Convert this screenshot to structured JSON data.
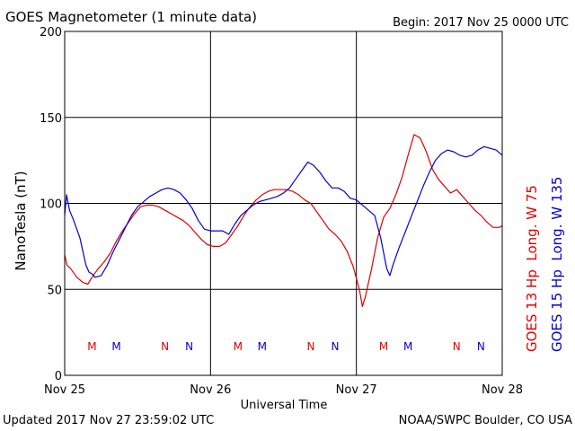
{
  "header": {
    "title": "GOES Magnetometer (1 minute data)",
    "begin": "Begin:  2017 Nov 25 0000 UTC"
  },
  "footer": {
    "updated": "Updated 2017 Nov 27 23:59:02 UTC",
    "credit": "NOAA/SWPC Boulder, CO USA"
  },
  "colors": {
    "goes13": "#e00000",
    "goes15": "#0000d0",
    "grid": "#000000"
  },
  "chart_data": {
    "type": "line",
    "xlabel": "Universal Time",
    "ylabel": "NanoTesla (nT)",
    "xlim": [
      0,
      72
    ],
    "ylim": [
      0,
      200
    ],
    "yticks": [
      0,
      50,
      100,
      150,
      200
    ],
    "xticks": [
      {
        "value": 0,
        "label": "Nov 25"
      },
      {
        "value": 24,
        "label": "Nov 26"
      },
      {
        "value": 48,
        "label": "Nov 27"
      },
      {
        "value": 72,
        "label": "Nov 28"
      }
    ],
    "grid": true,
    "legend_placement": "right, vertical",
    "series": [
      {
        "name": "GOES 15 Hp  Long. W 135",
        "color": "#0000d0",
        "points": [
          [
            0,
            93
          ],
          [
            0.3,
            105
          ],
          [
            0.8,
            96
          ],
          [
            1.5,
            90
          ],
          [
            2.5,
            80
          ],
          [
            3,
            72
          ],
          [
            3.5,
            64
          ],
          [
            4,
            60
          ],
          [
            4.5,
            59
          ],
          [
            5,
            57
          ],
          [
            6,
            58
          ],
          [
            7,
            64
          ],
          [
            8,
            72
          ],
          [
            9,
            79
          ],
          [
            10,
            86
          ],
          [
            11,
            93
          ],
          [
            12,
            98
          ],
          [
            13,
            101
          ],
          [
            14,
            104
          ],
          [
            15,
            106
          ],
          [
            16,
            108
          ],
          [
            17,
            109
          ],
          [
            18,
            108
          ],
          [
            19,
            106
          ],
          [
            20,
            102
          ],
          [
            21,
            97
          ],
          [
            22,
            90
          ],
          [
            23,
            85
          ],
          [
            24,
            84
          ],
          [
            25,
            84
          ],
          [
            26,
            84
          ],
          [
            27,
            82
          ],
          [
            28,
            88
          ],
          [
            29,
            93
          ],
          [
            30,
            96
          ],
          [
            31,
            99
          ],
          [
            32,
            101
          ],
          [
            33,
            102
          ],
          [
            34,
            103
          ],
          [
            35,
            104
          ],
          [
            36,
            106
          ],
          [
            37,
            109
          ],
          [
            38,
            114
          ],
          [
            39,
            119
          ],
          [
            40,
            124
          ],
          [
            41,
            122
          ],
          [
            42,
            118
          ],
          [
            43,
            113
          ],
          [
            44,
            109
          ],
          [
            45,
            109
          ],
          [
            46,
            107
          ],
          [
            47,
            103
          ],
          [
            48,
            102
          ],
          [
            49,
            99
          ],
          [
            50,
            96
          ],
          [
            51,
            93
          ],
          [
            52,
            80
          ],
          [
            53,
            62
          ],
          [
            53.5,
            58
          ],
          [
            54,
            64
          ],
          [
            55,
            74
          ],
          [
            56,
            83
          ],
          [
            57,
            92
          ],
          [
            58,
            101
          ],
          [
            59,
            110
          ],
          [
            60,
            118
          ],
          [
            61,
            125
          ],
          [
            62,
            129
          ],
          [
            63,
            131
          ],
          [
            64,
            130
          ],
          [
            65,
            128
          ],
          [
            66,
            127
          ],
          [
            67,
            128
          ],
          [
            68,
            131
          ],
          [
            69,
            133
          ],
          [
            70,
            132
          ],
          [
            71,
            131
          ],
          [
            72,
            128
          ]
        ]
      },
      {
        "name": "GOES 13 Hp  Long. W 75",
        "color": "#e00000",
        "points": [
          [
            0,
            70
          ],
          [
            0.4,
            64
          ],
          [
            1,
            62
          ],
          [
            2,
            57
          ],
          [
            3,
            54
          ],
          [
            3.8,
            53
          ],
          [
            4.5,
            57
          ],
          [
            5.5,
            62
          ],
          [
            6.5,
            66
          ],
          [
            7.5,
            71
          ],
          [
            8.5,
            78
          ],
          [
            9.5,
            84
          ],
          [
            10.5,
            89
          ],
          [
            11.5,
            94
          ],
          [
            12.5,
            98
          ],
          [
            13.5,
            99
          ],
          [
            14.5,
            99
          ],
          [
            15.5,
            98
          ],
          [
            16.5,
            96
          ],
          [
            17.5,
            94
          ],
          [
            18.5,
            92
          ],
          [
            19.5,
            90
          ],
          [
            20.5,
            87
          ],
          [
            21.5,
            83
          ],
          [
            22.5,
            79
          ],
          [
            23.5,
            76
          ],
          [
            24.5,
            75
          ],
          [
            25.5,
            75
          ],
          [
            26.5,
            77
          ],
          [
            27.5,
            82
          ],
          [
            28.5,
            87
          ],
          [
            29.5,
            93
          ],
          [
            30.5,
            98
          ],
          [
            31.5,
            102
          ],
          [
            32.5,
            105
          ],
          [
            33.5,
            107
          ],
          [
            34.5,
            108
          ],
          [
            35.5,
            108
          ],
          [
            36.5,
            108
          ],
          [
            37.5,
            107
          ],
          [
            38.5,
            105
          ],
          [
            39.5,
            102
          ],
          [
            40.5,
            100
          ],
          [
            41.5,
            95
          ],
          [
            42.5,
            90
          ],
          [
            43.5,
            85
          ],
          [
            44.5,
            82
          ],
          [
            45.5,
            78
          ],
          [
            46.5,
            72
          ],
          [
            47.5,
            63
          ],
          [
            48.5,
            50
          ],
          [
            49,
            40
          ],
          [
            49.5,
            46
          ],
          [
            50.5,
            62
          ],
          [
            51.5,
            80
          ],
          [
            52.5,
            92
          ],
          [
            53.5,
            97
          ],
          [
            54.5,
            105
          ],
          [
            55.5,
            115
          ],
          [
            56.5,
            128
          ],
          [
            57.5,
            140
          ],
          [
            58.5,
            138
          ],
          [
            59.5,
            130
          ],
          [
            60.5,
            120
          ],
          [
            61.5,
            114
          ],
          [
            62.5,
            110
          ],
          [
            63.5,
            106
          ],
          [
            64.5,
            108
          ],
          [
            65.5,
            104
          ],
          [
            66.5,
            100
          ],
          [
            67.5,
            96
          ],
          [
            68.5,
            93
          ],
          [
            69.5,
            89
          ],
          [
            70.5,
            86
          ],
          [
            71.5,
            86
          ],
          [
            72,
            87
          ]
        ]
      }
    ],
    "markers": [
      {
        "label": "M",
        "x": 4.5,
        "color": "#e00000"
      },
      {
        "label": "M",
        "x": 8.5,
        "color": "#0000d0"
      },
      {
        "label": "N",
        "x": 16.5,
        "color": "#e00000"
      },
      {
        "label": "N",
        "x": 20.5,
        "color": "#0000d0"
      },
      {
        "label": "M",
        "x": 28.5,
        "color": "#e00000"
      },
      {
        "label": "M",
        "x": 32.5,
        "color": "#0000d0"
      },
      {
        "label": "N",
        "x": 40.5,
        "color": "#e00000"
      },
      {
        "label": "N",
        "x": 44.5,
        "color": "#0000d0"
      },
      {
        "label": "M",
        "x": 52.5,
        "color": "#e00000"
      },
      {
        "label": "M",
        "x": 56.5,
        "color": "#0000d0"
      },
      {
        "label": "N",
        "x": 64.5,
        "color": "#e00000"
      },
      {
        "label": "N",
        "x": 68.5,
        "color": "#0000d0"
      }
    ]
  }
}
